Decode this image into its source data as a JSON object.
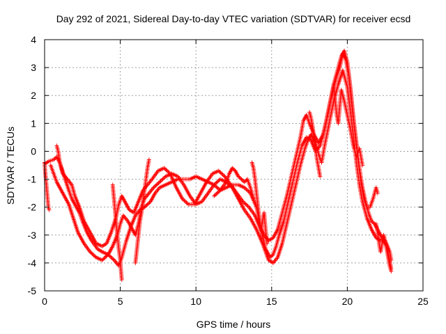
{
  "chart_data": {
    "type": "scatter",
    "title": "Day 292 of 2021, Sidereal Day-to-day VTEC variation (SDTVAR) for receiver ecsd",
    "xlabel": "GPS time / hours",
    "ylabel": "SDTVAR / TECUs",
    "xlim": [
      0,
      25
    ],
    "ylim": [
      -5,
      4
    ],
    "xticks": [
      "0",
      "5",
      "10",
      "15",
      "20",
      "25"
    ],
    "yticks": [
      "-5",
      "-4",
      "-3",
      "-2",
      "-1",
      "0",
      "1",
      "2",
      "3",
      "4"
    ],
    "grid": true,
    "marker": "+",
    "color": "#ff0000",
    "series": [
      {
        "points": [
          [
            0.0,
            -0.4
          ],
          [
            0.05,
            -0.8
          ],
          [
            0.1,
            -1.1
          ],
          [
            0.15,
            -1.4
          ],
          [
            0.2,
            -1.7
          ],
          [
            0.25,
            -2.0
          ],
          [
            0.3,
            -2.1
          ]
        ]
      },
      {
        "points": [
          [
            0.0,
            -0.45
          ],
          [
            0.3,
            -0.35
          ],
          [
            0.6,
            -0.3
          ],
          [
            0.8,
            -0.2
          ],
          [
            1.0,
            -0.4
          ],
          [
            1.3,
            -0.9
          ],
          [
            1.6,
            -1.4
          ],
          [
            1.8,
            -1.7
          ],
          [
            2.0,
            -1.9
          ],
          [
            2.3,
            -2.2
          ],
          [
            2.5,
            -2.5
          ],
          [
            2.8,
            -2.9
          ],
          [
            3.1,
            -3.2
          ],
          [
            3.5,
            -3.5
          ],
          [
            3.8,
            -3.6
          ],
          [
            4.2,
            -3.7
          ],
          [
            4.6,
            -3.9
          ],
          [
            4.9,
            -4.1
          ],
          [
            5.1,
            -3.8
          ],
          [
            5.4,
            -3.2
          ],
          [
            5.7,
            -2.7
          ],
          [
            6.0,
            -2.3
          ],
          [
            6.3,
            -2.1
          ],
          [
            6.6,
            -2.0
          ],
          [
            7.0,
            -1.8
          ],
          [
            7.3,
            -1.5
          ],
          [
            7.6,
            -1.3
          ],
          [
            8.0,
            -1.2
          ],
          [
            8.4,
            -1.1
          ],
          [
            8.8,
            -1.0
          ],
          [
            9.2,
            -1.0
          ],
          [
            9.6,
            -1.0
          ],
          [
            10.0,
            -0.9
          ],
          [
            10.4,
            -1.0
          ],
          [
            10.8,
            -1.1
          ],
          [
            11.2,
            -1.2
          ],
          [
            11.6,
            -1.4
          ],
          [
            12.0,
            -1.3
          ],
          [
            12.4,
            -1.2
          ],
          [
            12.8,
            -1.2
          ],
          [
            13.2,
            -1.3
          ],
          [
            13.6,
            -1.5
          ],
          [
            14.0,
            -2.0
          ],
          [
            14.3,
            -2.8
          ],
          [
            14.6,
            -3.5
          ],
          [
            14.9,
            -3.8
          ],
          [
            15.1,
            -3.7
          ],
          [
            15.3,
            -3.4
          ],
          [
            15.5,
            -3.0
          ],
          [
            15.8,
            -2.5
          ],
          [
            16.1,
            -1.8
          ],
          [
            16.4,
            -1.1
          ],
          [
            16.7,
            -0.4
          ],
          [
            17.0,
            0.2
          ],
          [
            17.3,
            0.5
          ],
          [
            17.6,
            0.4
          ],
          [
            17.9,
            0.0
          ],
          [
            18.2,
            0.2
          ],
          [
            18.5,
            0.8
          ],
          [
            18.8,
            1.6
          ],
          [
            19.1,
            2.4
          ],
          [
            19.4,
            3.0
          ],
          [
            19.6,
            3.4
          ],
          [
            19.8,
            3.6
          ],
          [
            20.0,
            3.2
          ],
          [
            20.2,
            2.3
          ],
          [
            20.4,
            1.2
          ],
          [
            20.6,
            0.3
          ],
          [
            20.8,
            -0.6
          ],
          [
            21.0,
            -1.3
          ],
          [
            21.2,
            -1.8
          ],
          [
            21.4,
            -2.2
          ],
          [
            21.6,
            -2.5
          ],
          [
            21.8,
            -2.6
          ],
          [
            22.0,
            -2.8
          ],
          [
            22.3,
            -3.1
          ],
          [
            22.6,
            -3.4
          ],
          [
            22.9,
            -4.2
          ]
        ]
      },
      {
        "points": [
          [
            0.4,
            -0.5
          ],
          [
            0.6,
            -0.8
          ],
          [
            0.8,
            -1.1
          ],
          [
            1.0,
            -1.3
          ],
          [
            1.3,
            -1.6
          ],
          [
            1.6,
            -1.9
          ],
          [
            1.9,
            -2.4
          ],
          [
            2.2,
            -2.9
          ],
          [
            2.6,
            -3.3
          ],
          [
            3.0,
            -3.6
          ],
          [
            3.4,
            -3.8
          ],
          [
            3.8,
            -3.9
          ],
          [
            4.2,
            -3.7
          ],
          [
            4.5,
            -3.4
          ],
          [
            4.8,
            -3.0
          ],
          [
            5.0,
            -2.6
          ],
          [
            5.2,
            -2.3
          ],
          [
            5.5,
            -2.5
          ],
          [
            5.8,
            -2.8
          ],
          [
            6.0,
            -3.0
          ],
          [
            6.2,
            -2.6
          ],
          [
            6.4,
            -2.0
          ],
          [
            6.6,
            -1.7
          ],
          [
            6.9,
            -1.5
          ],
          [
            7.2,
            -1.3
          ],
          [
            7.6,
            -1.1
          ],
          [
            8.0,
            -0.9
          ],
          [
            8.4,
            -0.8
          ],
          [
            8.8,
            -0.9
          ],
          [
            9.2,
            -1.2
          ],
          [
            9.6,
            -1.6
          ],
          [
            10.0,
            -1.9
          ],
          [
            10.4,
            -1.8
          ],
          [
            10.8,
            -1.5
          ],
          [
            11.2,
            -1.2
          ],
          [
            11.6,
            -1.0
          ],
          [
            12.0,
            -1.1
          ],
          [
            12.4,
            -1.3
          ],
          [
            12.8,
            -1.7
          ],
          [
            13.2,
            -2.1
          ],
          [
            13.6,
            -2.4
          ],
          [
            14.0,
            -2.8
          ],
          [
            14.4,
            -3.3
          ],
          [
            14.8,
            -3.9
          ],
          [
            15.1,
            -4.0
          ],
          [
            15.4,
            -3.8
          ],
          [
            15.7,
            -3.3
          ],
          [
            16.0,
            -2.6
          ],
          [
            16.3,
            -1.9
          ],
          [
            16.6,
            -1.2
          ],
          [
            16.9,
            -0.5
          ],
          [
            17.2,
            0.1
          ],
          [
            17.4,
            0.4
          ],
          [
            17.6,
            0.6
          ],
          [
            17.9,
            0.3
          ],
          [
            18.1,
            -0.1
          ],
          [
            18.3,
            -0.4
          ],
          [
            18.5,
            0.2
          ],
          [
            18.8,
            1.0
          ],
          [
            19.1,
            1.8
          ],
          [
            19.4,
            2.4
          ],
          [
            19.7,
            2.9
          ],
          [
            20.0,
            2.3
          ],
          [
            20.3,
            1.0
          ],
          [
            20.6,
            -0.4
          ],
          [
            20.8,
            -1.2
          ],
          [
            21.0,
            -1.8
          ],
          [
            21.3,
            -2.4
          ],
          [
            21.6,
            -2.8
          ],
          [
            21.9,
            -3.1
          ],
          [
            22.2,
            -3.2
          ],
          [
            22.5,
            -3.2
          ],
          [
            22.8,
            -3.6
          ],
          [
            22.9,
            -3.9
          ]
        ]
      },
      {
        "points": [
          [
            0.8,
            0.2
          ],
          [
            0.9,
            0.0
          ],
          [
            1.0,
            -0.4
          ],
          [
            1.2,
            -0.8
          ],
          [
            1.5,
            -1.0
          ],
          [
            1.8,
            -1.2
          ],
          [
            2.0,
            -1.6
          ],
          [
            2.3,
            -2.0
          ],
          [
            2.6,
            -2.5
          ],
          [
            3.0,
            -2.9
          ],
          [
            3.4,
            -3.3
          ],
          [
            3.8,
            -3.4
          ],
          [
            4.1,
            -3.3
          ],
          [
            4.4,
            -2.9
          ],
          [
            4.7,
            -2.4
          ],
          [
            4.9,
            -1.9
          ],
          [
            5.1,
            -1.6
          ],
          [
            5.3,
            -1.8
          ],
          [
            5.6,
            -2.1
          ],
          [
            5.9,
            -2.2
          ],
          [
            6.2,
            -1.8
          ],
          [
            6.5,
            -1.4
          ],
          [
            6.8,
            -1.2
          ],
          [
            7.1,
            -1.0
          ],
          [
            7.5,
            -0.7
          ],
          [
            7.9,
            -0.6
          ],
          [
            8.3,
            -0.8
          ],
          [
            8.7,
            -1.3
          ],
          [
            9.1,
            -1.7
          ],
          [
            9.5,
            -1.9
          ],
          [
            9.9,
            -1.9
          ],
          [
            10.3,
            -1.5
          ],
          [
            10.7,
            -1.1
          ],
          [
            11.1,
            -0.8
          ],
          [
            11.5,
            -0.7
          ],
          [
            11.9,
            -0.9
          ],
          [
            12.3,
            -1.2
          ],
          [
            12.7,
            -1.5
          ],
          [
            13.1,
            -1.8
          ],
          [
            13.5,
            -2.0
          ],
          [
            13.9,
            -2.3
          ],
          [
            14.2,
            -2.7
          ],
          [
            14.5,
            -3.0
          ],
          [
            14.8,
            -3.2
          ],
          [
            15.1,
            -3.1
          ],
          [
            15.4,
            -2.8
          ],
          [
            15.7,
            -2.2
          ],
          [
            16.0,
            -1.6
          ],
          [
            16.3,
            -0.9
          ],
          [
            16.6,
            -0.2
          ],
          [
            16.9,
            0.5
          ],
          [
            17.1,
            1.1
          ],
          [
            17.3,
            1.3
          ],
          [
            17.5,
            1.0
          ],
          [
            17.8,
            0.6
          ],
          [
            18.1,
            0.3
          ],
          [
            18.4,
            0.6
          ],
          [
            18.7,
            1.3
          ],
          [
            19.0,
            2.1
          ],
          [
            19.3,
            2.7
          ],
          [
            19.5,
            3.0
          ],
          [
            19.7,
            3.5
          ],
          [
            19.9,
            3.3
          ],
          [
            20.1,
            2.7
          ],
          [
            20.3,
            1.7
          ],
          [
            20.5,
            0.7
          ],
          [
            20.7,
            -0.3
          ],
          [
            20.9,
            -1.1
          ],
          [
            21.1,
            -1.7
          ],
          [
            21.3,
            -2.0
          ],
          [
            21.5,
            -2.0
          ],
          [
            21.7,
            -1.7
          ],
          [
            21.9,
            -1.3
          ],
          [
            22.0,
            -1.5
          ]
        ]
      },
      {
        "points": [
          [
            4.5,
            -1.2
          ],
          [
            4.6,
            -1.8
          ],
          [
            4.7,
            -2.4
          ],
          [
            4.8,
            -3.0
          ],
          [
            4.9,
            -3.5
          ],
          [
            5.0,
            -3.9
          ],
          [
            5.05,
            -4.3
          ],
          [
            5.1,
            -4.6
          ]
        ]
      },
      {
        "points": [
          [
            6.0,
            -4.0
          ],
          [
            6.1,
            -3.5
          ],
          [
            6.2,
            -3.0
          ],
          [
            6.3,
            -2.5
          ],
          [
            6.4,
            -2.2
          ],
          [
            6.5,
            -1.8
          ],
          [
            6.6,
            -1.4
          ],
          [
            6.7,
            -1.0
          ],
          [
            6.8,
            -0.6
          ],
          [
            6.9,
            -0.3
          ]
        ]
      },
      {
        "points": [
          [
            13.7,
            -0.4
          ],
          [
            13.8,
            -0.6
          ],
          [
            13.9,
            -1.0
          ],
          [
            14.0,
            -1.5
          ],
          [
            14.1,
            -2.0
          ],
          [
            14.2,
            -2.5
          ],
          [
            14.3,
            -2.8
          ],
          [
            14.4,
            -2.5
          ],
          [
            14.5,
            -2.2
          ],
          [
            14.6,
            -2.8
          ],
          [
            14.7,
            -3.3
          ]
        ]
      },
      {
        "points": [
          [
            17.5,
            1.4
          ],
          [
            17.6,
            1.2
          ],
          [
            17.7,
            0.9
          ],
          [
            17.8,
            0.5
          ],
          [
            17.9,
            0.1
          ],
          [
            18.0,
            -0.3
          ],
          [
            18.1,
            -0.6
          ],
          [
            18.2,
            -0.9
          ]
        ]
      },
      {
        "points": [
          [
            19.0,
            2.0
          ],
          [
            19.1,
            2.4
          ],
          [
            19.2,
            1.8
          ],
          [
            19.3,
            1.3
          ],
          [
            19.4,
            1.0
          ],
          [
            19.5,
            1.6
          ],
          [
            19.6,
            2.2
          ],
          [
            19.8,
            1.8
          ],
          [
            20.0,
            1.3
          ],
          [
            20.2,
            0.8
          ],
          [
            20.4,
            0.2
          ],
          [
            20.6,
            -0.2
          ],
          [
            20.8,
            0.1
          ],
          [
            21.0,
            -0.5
          ]
        ]
      },
      {
        "points": [
          [
            21.9,
            -2.6
          ],
          [
            22.0,
            -2.9
          ],
          [
            22.1,
            -3.3
          ],
          [
            22.2,
            -3.6
          ],
          [
            22.3,
            -3.3
          ],
          [
            22.4,
            -3.0
          ],
          [
            22.5,
            -3.2
          ],
          [
            22.6,
            -3.5
          ],
          [
            22.7,
            -3.8
          ],
          [
            22.8,
            -4.1
          ],
          [
            22.9,
            -4.3
          ]
        ]
      },
      {
        "points": [
          [
            11.2,
            -1.6
          ],
          [
            11.6,
            -1.4
          ],
          [
            12.0,
            -1.1
          ],
          [
            12.2,
            -0.8
          ],
          [
            12.4,
            -0.6
          ],
          [
            12.6,
            -0.7
          ],
          [
            12.8,
            -0.9
          ],
          [
            13.0,
            -1.0
          ],
          [
            13.2,
            -1.1
          ],
          [
            13.4,
            -1.0
          ],
          [
            13.6,
            -1.3
          ],
          [
            13.8,
            -1.7
          ]
        ]
      }
    ]
  }
}
